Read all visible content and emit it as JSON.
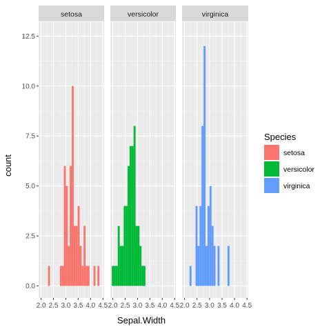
{
  "chart_data": {
    "type": "bar",
    "subtype": "histogram-faceted",
    "xlabel": "Sepal.Width",
    "ylabel": "count",
    "xlim": [
      1.9,
      4.55
    ],
    "ylim": [
      -0.6,
      13.2
    ],
    "x_ticks": [
      2.0,
      2.5,
      3.0,
      3.5,
      4.0,
      4.5
    ],
    "x_tick_labels": [
      "2.0",
      "2.5",
      "3.0",
      "3.5",
      "4.0",
      "4.5"
    ],
    "y_ticks": [
      0,
      2.5,
      5,
      7.5,
      10,
      12.5
    ],
    "y_tick_labels": [
      "0.0",
      "2.5",
      "5.0",
      "7.5",
      "10.0",
      "12.5"
    ],
    "bin_width": 0.08,
    "grid": true,
    "legend": {
      "title": "Species",
      "position": "right"
    },
    "facets": [
      {
        "label": "setosa",
        "color": "#F8766D",
        "bins": [
          {
            "x": 2.32,
            "y": 1
          },
          {
            "x": 2.8,
            "y": 1
          },
          {
            "x": 2.88,
            "y": 1
          },
          {
            "x": 2.96,
            "y": 6
          },
          {
            "x": 3.04,
            "y": 5
          },
          {
            "x": 3.12,
            "y": 2
          },
          {
            "x": 3.2,
            "y": 6
          },
          {
            "x": 3.28,
            "y": 10
          },
          {
            "x": 3.36,
            "y": 3
          },
          {
            "x": 3.44,
            "y": 3
          },
          {
            "x": 3.52,
            "y": 4
          },
          {
            "x": 3.6,
            "y": 2
          },
          {
            "x": 3.68,
            "y": 1
          },
          {
            "x": 3.76,
            "y": 3
          },
          {
            "x": 3.84,
            "y": 1
          },
          {
            "x": 3.92,
            "y": 1
          },
          {
            "x": 4.16,
            "y": 1
          },
          {
            "x": 4.32,
            "y": 1
          }
        ]
      },
      {
        "label": "versicolor",
        "color": "#00BA38",
        "bins": [
          {
            "x": 2.0,
            "y": 1
          },
          {
            "x": 2.08,
            "y": 1
          },
          {
            "x": 2.16,
            "y": 1
          },
          {
            "x": 2.24,
            "y": 3
          },
          {
            "x": 2.32,
            "y": 2
          },
          {
            "x": 2.4,
            "y": 2
          },
          {
            "x": 2.48,
            "y": 4
          },
          {
            "x": 2.56,
            "y": 4
          },
          {
            "x": 2.64,
            "y": 6
          },
          {
            "x": 2.72,
            "y": 7
          },
          {
            "x": 2.8,
            "y": 7
          },
          {
            "x": 2.88,
            "y": 8
          },
          {
            "x": 2.96,
            "y": 3
          },
          {
            "x": 3.04,
            "y": 3
          },
          {
            "x": 3.12,
            "y": 2
          },
          {
            "x": 3.2,
            "y": 1
          },
          {
            "x": 3.28,
            "y": 1
          }
        ]
      },
      {
        "label": "virginica",
        "color": "#619CFF",
        "bins": [
          {
            "x": 2.24,
            "y": 1
          },
          {
            "x": 2.48,
            "y": 4
          },
          {
            "x": 2.56,
            "y": 2
          },
          {
            "x": 2.64,
            "y": 4
          },
          {
            "x": 2.72,
            "y": 8
          },
          {
            "x": 2.8,
            "y": 12
          },
          {
            "x": 2.88,
            "y": 2
          },
          {
            "x": 2.96,
            "y": 4
          },
          {
            "x": 3.04,
            "y": 5
          },
          {
            "x": 3.12,
            "y": 3
          },
          {
            "x": 3.2,
            "y": 2
          },
          {
            "x": 3.36,
            "y": 2
          },
          {
            "x": 3.76,
            "y": 2
          }
        ]
      }
    ]
  }
}
